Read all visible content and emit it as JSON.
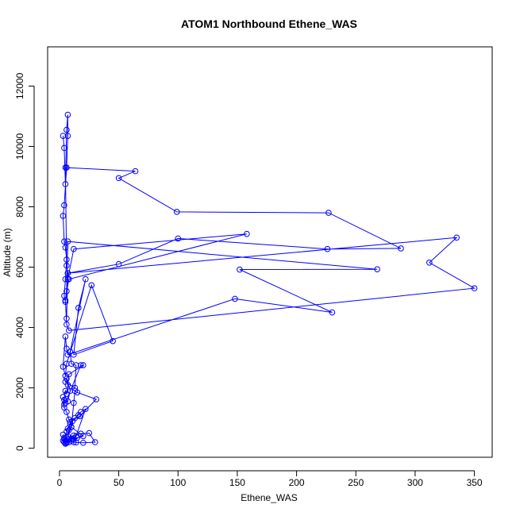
{
  "chart_data": {
    "type": "line",
    "title": "ATOM1 Northbound Ethene_WAS",
    "xlabel": "Ethene_WAS",
    "ylabel": "Altitude (m)",
    "xlim": [
      -10,
      365
    ],
    "ylim": [
      -300,
      13300
    ],
    "x_ticks": [
      0,
      50,
      100,
      150,
      200,
      250,
      300,
      350
    ],
    "y_ticks": [
      0,
      2000,
      4000,
      6000,
      8000,
      10000,
      12000
    ],
    "x_tick_labels": [
      "0",
      "50",
      "100",
      "150",
      "200",
      "250",
      "300",
      "350"
    ],
    "y_tick_labels": [
      "0",
      "2000",
      "4000",
      "6000",
      "8000",
      "10000",
      "12000"
    ],
    "grid": false,
    "legend": "none",
    "series_color": "#0000ff",
    "marker": "open-circle",
    "series": [
      {
        "x": [
          3,
          4,
          5,
          6,
          7,
          7,
          6,
          4,
          3,
          4,
          5,
          6,
          5,
          4,
          5,
          6,
          7,
          6,
          5,
          64,
          50,
          99,
          227,
          288,
          226,
          100,
          50,
          7,
          335,
          312,
          350,
          8,
          6,
          5,
          7,
          12,
          158,
          8,
          6,
          7,
          268,
          152,
          230,
          148,
          7,
          6,
          5,
          3,
          5,
          6,
          27,
          45,
          12,
          16,
          22,
          9,
          10,
          14,
          13,
          5,
          6,
          9,
          7,
          5,
          18,
          20,
          8,
          7,
          6,
          5,
          4,
          4,
          3,
          4,
          6,
          8,
          10,
          12,
          13,
          15,
          31,
          17,
          9,
          8,
          7,
          10,
          20,
          12,
          6,
          5,
          4,
          3,
          5,
          6,
          7,
          9,
          11,
          13,
          16,
          18,
          22,
          14,
          10,
          8,
          6,
          5,
          4,
          3,
          4,
          6,
          12,
          18,
          25,
          30,
          20,
          14,
          12,
          10,
          8,
          15
        ],
        "y": [
          10350,
          9950,
          8750,
          10550,
          11050,
          10350,
          9300,
          8050,
          7700,
          6850,
          6650,
          6250,
          5600,
          5050,
          4850,
          4300,
          5800,
          6050,
          9300,
          9180,
          8950,
          7830,
          7800,
          6620,
          6600,
          6950,
          6100,
          5800,
          6980,
          6150,
          5300,
          3900,
          4100,
          4900,
          5600,
          6600,
          7100,
          5600,
          5200,
          6850,
          5930,
          5920,
          4500,
          4950,
          3100,
          3300,
          3700,
          2700,
          2400,
          2800,
          5400,
          3550,
          3100,
          4650,
          5600,
          3200,
          2800,
          2750,
          2000,
          2200,
          2300,
          1900,
          1550,
          1500,
          2750,
          2750,
          2450,
          2100,
          1800,
          1900,
          1600,
          1450,
          1700,
          1350,
          1200,
          950,
          700,
          1500,
          1900,
          1850,
          1620,
          1060,
          870,
          600,
          400,
          700,
          400,
          300,
          200,
          250,
          350,
          450,
          150,
          550,
          650,
          800,
          900,
          1000,
          1100,
          1200,
          1300,
          400,
          300,
          200,
          180,
          160,
          200,
          250,
          300,
          350,
          420,
          480,
          500,
          200,
          180,
          190,
          200,
          250,
          300,
          350
        ]
      }
    ]
  }
}
